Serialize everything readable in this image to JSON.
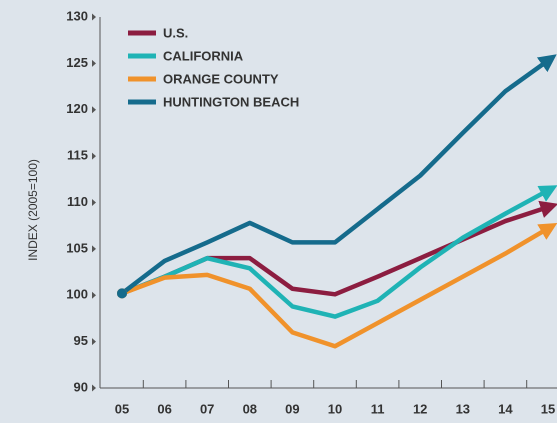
{
  "chart_data": {
    "type": "line",
    "y_label": "INDEX (2005=100)",
    "categories": [
      "05",
      "06",
      "07",
      "08",
      "09",
      "10",
      "11",
      "12",
      "13",
      "14",
      "15"
    ],
    "series": [
      {
        "name": "U.S.",
        "color": "#8c1d40",
        "values": [
          100.2,
          102,
          104,
          104,
          100.7,
          100.1,
          102,
          104,
          106,
          108,
          109.5
        ]
      },
      {
        "name": "CALIFORNIA",
        "color": "#1fb3b5",
        "values": [
          100.2,
          102,
          104,
          102.9,
          98.8,
          97.7,
          99.4,
          103,
          106.2,
          108.8,
          111.3
        ]
      },
      {
        "name": "ORANGE COUNTY",
        "color": "#f0922b",
        "values": [
          100.2,
          101.9,
          102.2,
          100.7,
          96,
          94.5,
          97,
          99.5,
          102,
          104.5,
          107.2
        ]
      },
      {
        "name": "HUNTINGTON BEACH",
        "color": "#156b8c",
        "values": [
          100.2,
          103.7,
          105.7,
          107.8,
          105.7,
          105.7,
          109.3,
          112.9,
          117.5,
          122,
          125.3
        ]
      }
    ],
    "ylim": [
      90,
      130
    ],
    "yticks": [
      90,
      95,
      100,
      105,
      110,
      115,
      120,
      125,
      130
    ],
    "legend": "upper left"
  }
}
